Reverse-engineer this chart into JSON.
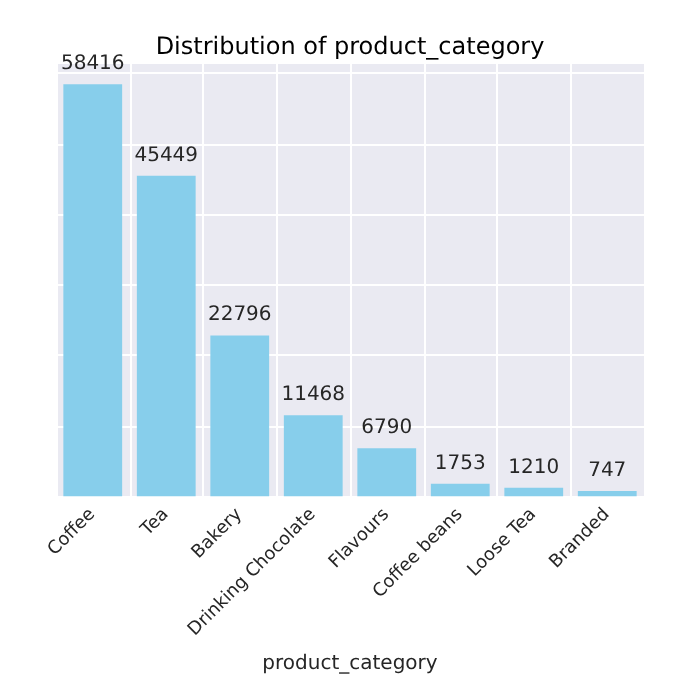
{
  "chart_data": {
    "type": "bar",
    "title": "Distribution of product_category",
    "xlabel": "product_category",
    "categories": [
      "Coffee",
      "Tea",
      "Bakery",
      "Drinking Chocolate",
      "Flavours",
      "Coffee beans",
      "Loose Tea",
      "Branded"
    ],
    "values": [
      58416,
      45449,
      22796,
      11468,
      6790,
      1753,
      1210,
      747
    ],
    "color": "#87ceeb",
    "ylim": [
      0,
      61300
    ],
    "yticks": [
      0,
      10000,
      20000,
      30000,
      40000,
      50000,
      60000
    ],
    "grid": true,
    "tick_labels": "x",
    "data_labels": true
  }
}
